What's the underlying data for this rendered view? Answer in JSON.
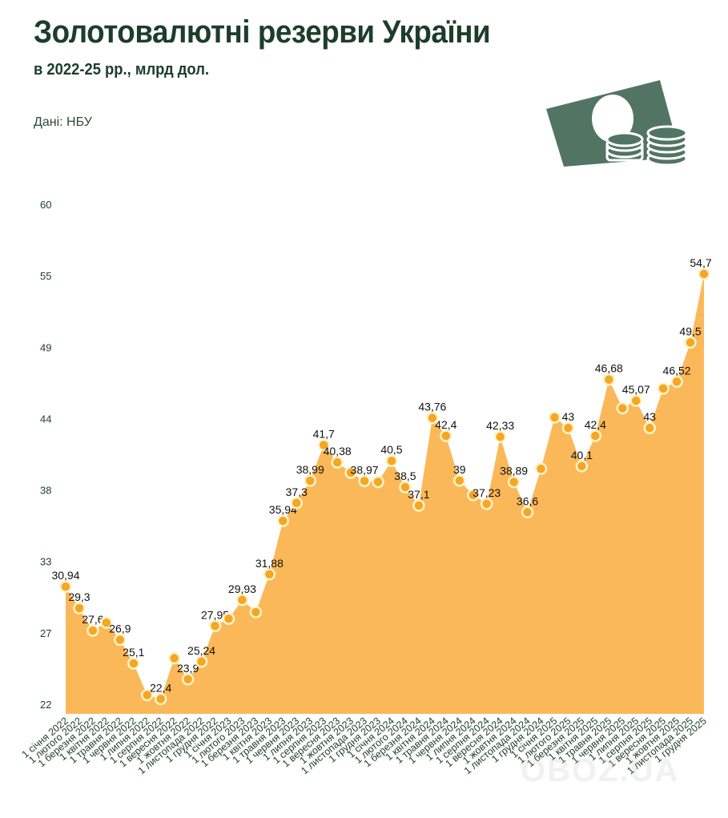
{
  "header": {
    "title": "Золотовалютні резерви України",
    "subtitle": "в 2022-25 рр., млрд дол.",
    "source": "Дані: НБУ",
    "icon": "money-banknote-coins-icon"
  },
  "watermark": "OBOZ.UA",
  "colors": {
    "title": "#1d3d2a",
    "area_fill": "#fbb859",
    "marker_fill": "#f5a623",
    "marker_stroke": "#fff3c9",
    "icon": "#527563",
    "axis_text": "#1d3d2a"
  },
  "chart_data": {
    "type": "area",
    "title": "Золотовалютні резерви України",
    "subtitle": "в 2022-25 рр., млрд дол.",
    "xlabel": "",
    "ylabel": "млрд дол.",
    "ylim": [
      22,
      60
    ],
    "yticks": [
      60,
      55,
      49,
      44,
      38,
      33,
      27,
      22
    ],
    "grid": false,
    "legend": null,
    "categories": [
      "1 січня 2022",
      "1 лютого 2022",
      "1 березня 2022",
      "1 квітня 2022",
      "1 травня 2022",
      "1 червня 2022",
      "1 липня 2022",
      "1 серпня 2022",
      "1 вересня 2022",
      "1 жовтня 2022",
      "1 листопада 2022",
      "1 грудня 2022",
      "1 січня 2023",
      "1 лютого 2023",
      "1 березня 2023",
      "1 квітня 2023",
      "1 травня 2023",
      "1 червня 2023",
      "1 липня 2023",
      "1 серпня 2023",
      "1 вересня 2023",
      "1 жовтня 2023",
      "1 листопада 2023",
      "1 грудня 2023",
      "1 січня 2024",
      "1 лютого 2024",
      "1 березня 2024",
      "1 квітня 2024",
      "1 травня 2024",
      "1 червня 2024",
      "1 липня 2024",
      "1 серпня 2024",
      "1 вересня 2024",
      "1 жовтня 2024",
      "1 листопада 2024",
      "1 грудня 2024",
      "1 січня 2025",
      "1 лютого 2025",
      "1 березня 2025",
      "1 квітня 2025",
      "1 травня 2025",
      "1 червня 2025",
      "1 липня 2025",
      "1 серпня 2025",
      "1 вересня 2025",
      "1 жовтня 2025",
      "1 листопада 2025",
      "1 грудня 2025"
    ],
    "values": [
      30.94,
      29.3,
      27.6,
      28.2,
      26.9,
      25.1,
      22.7,
      22.4,
      25.5,
      23.9,
      25.24,
      27.95,
      28.5,
      29.93,
      29.0,
      31.88,
      35.94,
      37.3,
      38.99,
      41.7,
      40.38,
      39.6,
      38.97,
      38.9,
      40.5,
      38.5,
      37.1,
      43.76,
      42.4,
      39.0,
      37.9,
      37.23,
      42.33,
      38.89,
      36.6,
      39.9,
      43.8,
      43.0,
      40.1,
      42.4,
      46.68,
      44.5,
      45.07,
      43.0,
      46.0,
      46.52,
      49.5,
      54.7
    ],
    "data_labels": [
      "30,94",
      "29,3",
      "27,6",
      "",
      "26,9",
      "25,1",
      "",
      "22,4",
      "",
      "23,9",
      "25,24",
      "27,95",
      "",
      "29,93",
      "",
      "31,88",
      "35,94",
      "37,3",
      "38,99",
      "41,7",
      "40,38",
      "",
      "38,97",
      "",
      "40,5",
      "38,5",
      "37,1",
      "43,76",
      "42,4",
      "39",
      "",
      "37,23",
      "42,33",
      "38,89",
      "36,6",
      "",
      "",
      "43",
      "40,1",
      "42,4",
      "46,68",
      "",
      "45,07",
      "43",
      "",
      "46,52",
      "49,5",
      "54,7"
    ]
  }
}
